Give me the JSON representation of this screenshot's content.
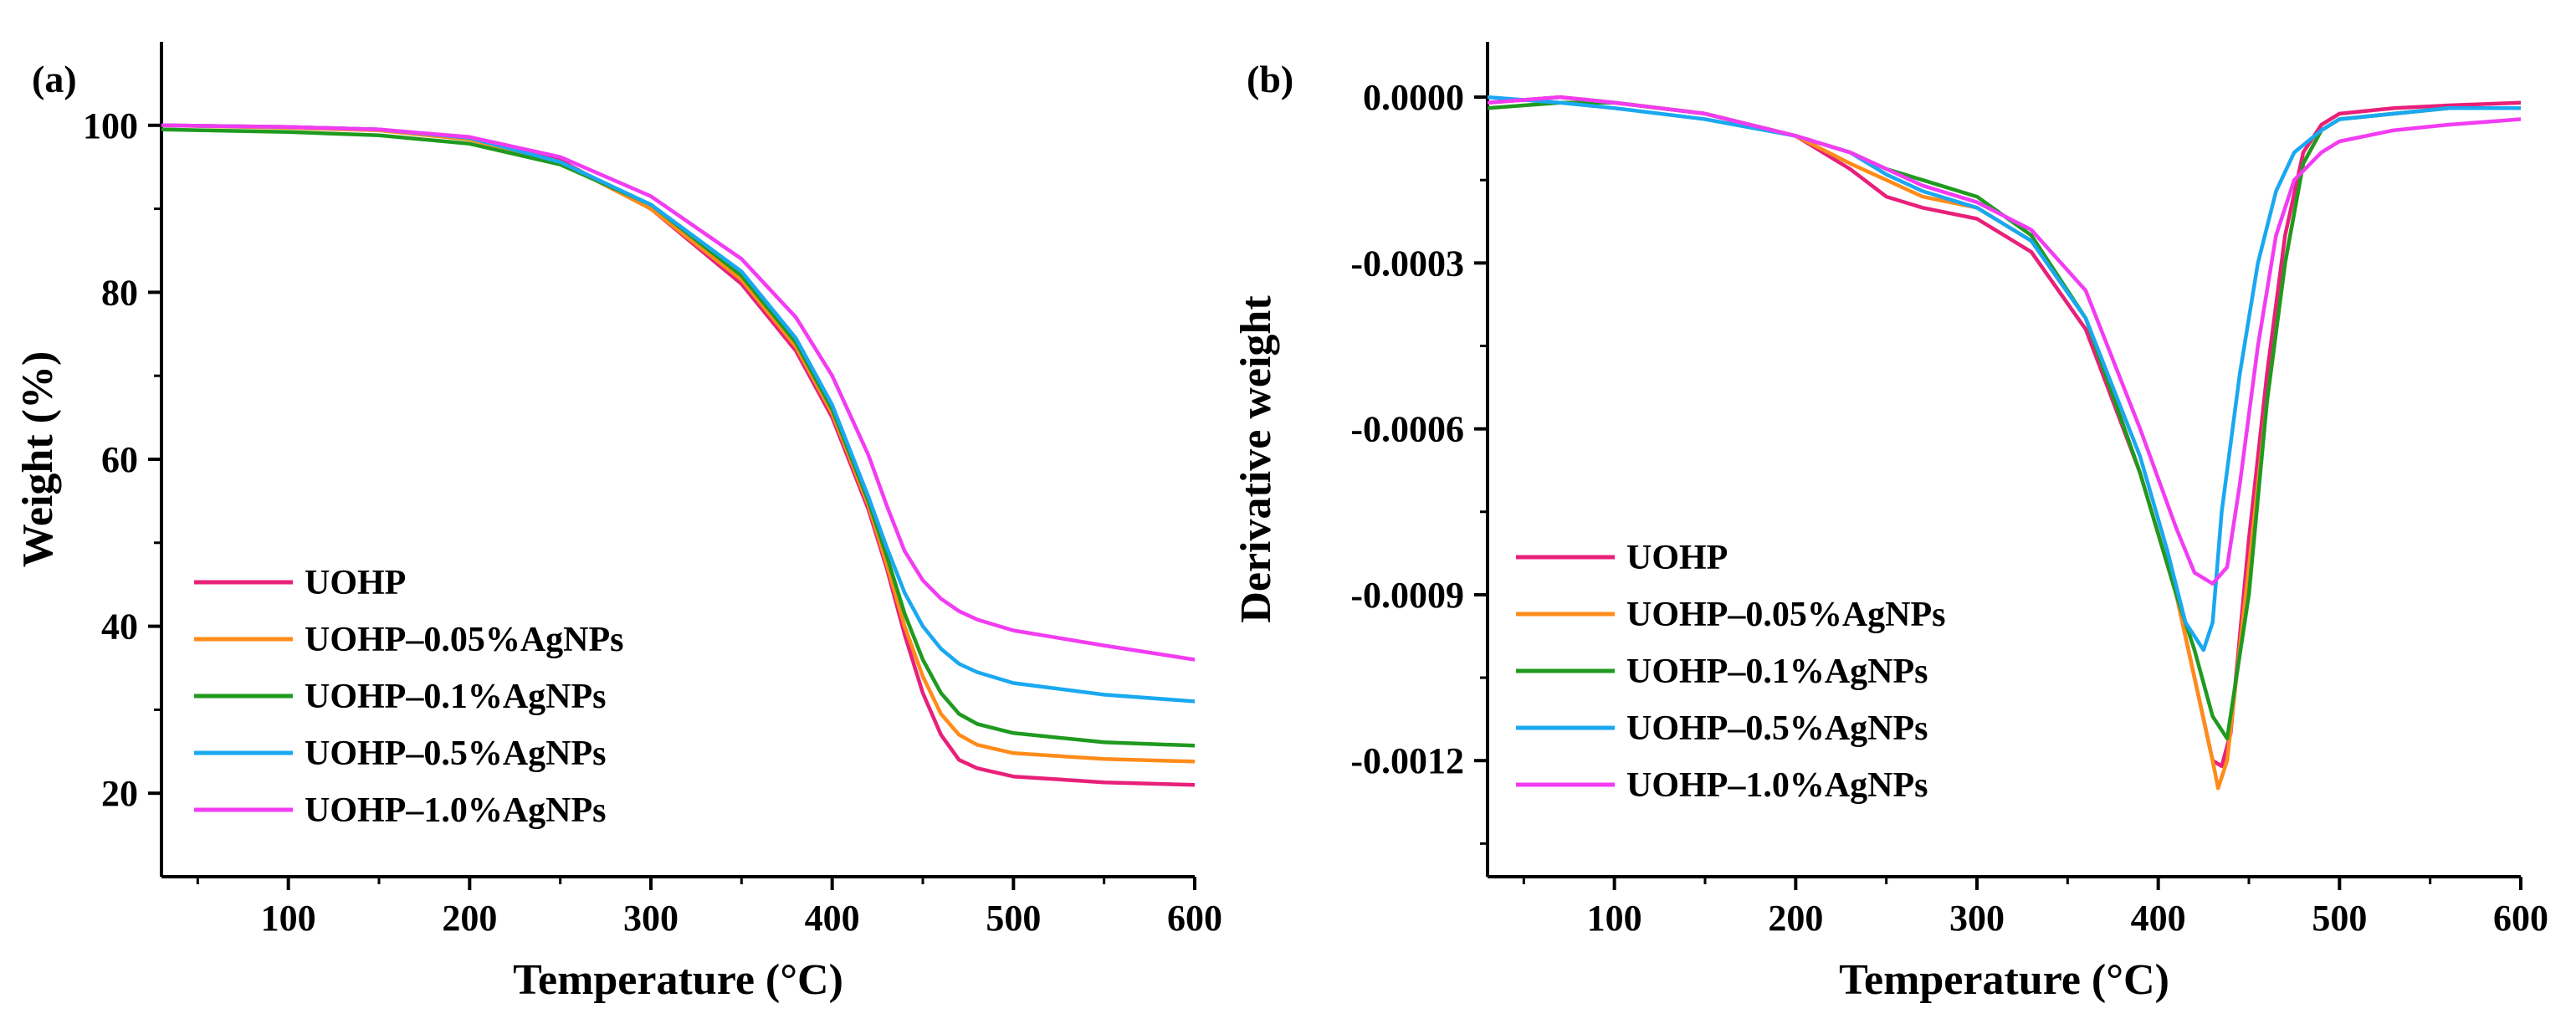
{
  "colors": {
    "UOHP": "#e8207a",
    "UOHP-0.05%AgNPs": "#ff8c1a",
    "UOHP-0.1%AgNPs": "#1f9a1f",
    "UOHP-0.5%AgNPs": "#1aa8f0",
    "UOHP-1.0%AgNPs": "#f23cf2"
  },
  "chart_data": [
    {
      "panel": "(a)",
      "type": "line",
      "xlabel": "Temperature (°C)",
      "ylabel": "Weight (%)",
      "xlim": [
        30,
        600
      ],
      "ylim": [
        10,
        110
      ],
      "xticks": [
        100,
        200,
        300,
        400,
        500,
        600
      ],
      "xtick_labels": [
        "100",
        "200",
        "300",
        "400",
        "500",
        "600"
      ],
      "yticks": [
        20,
        40,
        60,
        80,
        100
      ],
      "ytick_labels": [
        "20",
        "40",
        "60",
        "80",
        "100"
      ],
      "legend_position": "bottom-left",
      "series": [
        {
          "name": "UOHP",
          "label": "UOHP",
          "x": [
            30,
            100,
            150,
            200,
            250,
            300,
            350,
            380,
            400,
            420,
            430,
            440,
            450,
            460,
            470,
            480,
            500,
            550,
            600
          ],
          "y": [
            100,
            99.8,
            99.5,
            98.5,
            95.8,
            90,
            81,
            73,
            65,
            54,
            47,
            39,
            32,
            27,
            24,
            23,
            22,
            21.3,
            21
          ]
        },
        {
          "name": "UOHP-0.05%AgNPs",
          "label": "UOHP–0.05%AgNPs",
          "x": [
            30,
            100,
            150,
            200,
            250,
            300,
            350,
            380,
            400,
            420,
            430,
            440,
            450,
            460,
            470,
            480,
            500,
            550,
            600
          ],
          "y": [
            100,
            99.7,
            99.4,
            98.3,
            95.6,
            90,
            81.5,
            73.5,
            65.5,
            54.5,
            47.5,
            40,
            34,
            29.5,
            27,
            25.8,
            24.8,
            24.1,
            23.8
          ]
        },
        {
          "name": "UOHP-0.1%AgNPs",
          "label": "UOHP–0.1%AgNPs",
          "x": [
            30,
            100,
            150,
            200,
            250,
            300,
            350,
            380,
            400,
            420,
            430,
            440,
            450,
            460,
            470,
            480,
            500,
            550,
            600
          ],
          "y": [
            99.5,
            99.2,
            98.8,
            97.8,
            95.3,
            90.5,
            82,
            74,
            66,
            55,
            48.5,
            41.5,
            36,
            32,
            29.5,
            28.3,
            27.2,
            26.1,
            25.7
          ]
        },
        {
          "name": "UOHP-0.5%AgNPs",
          "label": "UOHP–0.5%AgNPs",
          "x": [
            30,
            100,
            150,
            200,
            250,
            300,
            350,
            380,
            400,
            420,
            430,
            440,
            450,
            460,
            470,
            480,
            500,
            550,
            600
          ],
          "y": [
            100,
            99.8,
            99.5,
            98.5,
            95.6,
            90.5,
            82.5,
            74.5,
            66.5,
            55.5,
            49.5,
            44,
            40,
            37.3,
            35.5,
            34.5,
            33.2,
            31.8,
            31
          ]
        },
        {
          "name": "UOHP-1.0%AgNPs",
          "label": "UOHP–1.0%AgNPs",
          "x": [
            30,
            100,
            150,
            200,
            250,
            300,
            350,
            380,
            400,
            420,
            430,
            440,
            450,
            460,
            470,
            480,
            500,
            550,
            600
          ],
          "y": [
            100,
            99.8,
            99.5,
            98.6,
            96.2,
            91.5,
            84,
            77,
            70,
            60.5,
            54.5,
            49,
            45.5,
            43.3,
            41.8,
            40.8,
            39.5,
            37.7,
            36
          ]
        }
      ]
    },
    {
      "panel": "(b)",
      "type": "line",
      "xlabel": "Temperature (°C)",
      "ylabel": "Derivative weight",
      "xlim": [
        30,
        600
      ],
      "ylim": [
        -0.00141,
        0.0001
      ],
      "xticks": [
        100,
        200,
        300,
        400,
        500,
        600
      ],
      "xtick_labels": [
        "100",
        "200",
        "300",
        "400",
        "500",
        "600"
      ],
      "yticks": [
        0.0,
        -0.0003,
        -0.0006,
        -0.0009,
        -0.0012
      ],
      "ytick_labels": [
        "0.0000",
        "-0.0003",
        "-0.0006",
        "-0.0009",
        "-0.0012"
      ],
      "legend_position": "bottom-left",
      "series": [
        {
          "name": "UOHP",
          "label": "UOHP",
          "x": [
            30,
            70,
            100,
            150,
            200,
            230,
            250,
            270,
            300,
            330,
            360,
            390,
            410,
            420,
            430,
            435,
            440,
            450,
            460,
            470,
            480,
            490,
            500,
            530,
            560,
            600
          ],
          "y": [
            -1e-05,
            0.0,
            -1e-05,
            -3e-05,
            -7e-05,
            -0.00013,
            -0.00018,
            -0.0002,
            -0.00022,
            -0.00028,
            -0.00042,
            -0.00068,
            -0.0009,
            -0.00105,
            -0.0012,
            -0.00121,
            -0.00115,
            -0.0008,
            -0.0005,
            -0.00025,
            -0.0001,
            -5e-05,
            -3e-05,
            -2e-05,
            -1.5e-05,
            -1e-05
          ]
        },
        {
          "name": "UOHP-0.05%AgNPs",
          "label": "UOHP–0.05%AgNPs",
          "x": [
            30,
            70,
            100,
            150,
            200,
            230,
            250,
            270,
            300,
            330,
            360,
            390,
            410,
            420,
            430,
            433,
            438,
            450,
            460,
            470,
            480,
            490,
            500,
            530,
            560,
            600
          ],
          "y": [
            -1e-05,
            0.0,
            -1e-05,
            -3e-05,
            -7e-05,
            -0.00012,
            -0.00015,
            -0.00018,
            -0.0002,
            -0.00026,
            -0.0004,
            -0.00068,
            -0.0009,
            -0.00105,
            -0.0012,
            -0.00125,
            -0.0012,
            -0.00085,
            -0.00055,
            -0.0003,
            -0.00012,
            -6e-05,
            -4e-05,
            -3e-05,
            -2e-05,
            -2e-05
          ]
        },
        {
          "name": "UOHP-0.1%AgNPs",
          "label": "UOHP–0.1%AgNPs",
          "x": [
            30,
            70,
            100,
            150,
            200,
            230,
            250,
            270,
            300,
            330,
            360,
            390,
            410,
            420,
            430,
            438,
            450,
            460,
            470,
            480,
            490,
            500,
            530,
            560,
            600
          ],
          "y": [
            -2e-05,
            -1e-05,
            -1e-05,
            -3e-05,
            -7e-05,
            -0.0001,
            -0.00013,
            -0.00015,
            -0.00018,
            -0.00025,
            -0.0004,
            -0.00068,
            -0.0009,
            -0.001,
            -0.00112,
            -0.00116,
            -0.0009,
            -0.00055,
            -0.0003,
            -0.00012,
            -6e-05,
            -4e-05,
            -3e-05,
            -2e-05,
            -2e-05
          ]
        },
        {
          "name": "UOHP-0.5%AgNPs",
          "label": "UOHP–0.5%AgNPs",
          "x": [
            30,
            70,
            100,
            150,
            200,
            230,
            250,
            270,
            300,
            330,
            360,
            390,
            405,
            415,
            425,
            430,
            435,
            445,
            455,
            465,
            475,
            490,
            500,
            530,
            560,
            600
          ],
          "y": [
            0.0,
            -1e-05,
            -2e-05,
            -4e-05,
            -7e-05,
            -0.0001,
            -0.00014,
            -0.00017,
            -0.0002,
            -0.00026,
            -0.0004,
            -0.00065,
            -0.00082,
            -0.00095,
            -0.001,
            -0.00095,
            -0.00075,
            -0.0005,
            -0.0003,
            -0.00017,
            -0.0001,
            -6e-05,
            -4e-05,
            -3e-05,
            -2e-05,
            -2e-05
          ]
        },
        {
          "name": "UOHP-1.0%AgNPs",
          "label": "UOHP–1.0%AgNPs",
          "x": [
            30,
            70,
            100,
            150,
            200,
            230,
            250,
            270,
            300,
            330,
            360,
            390,
            410,
            420,
            430,
            438,
            445,
            455,
            465,
            475,
            490,
            500,
            530,
            560,
            600
          ],
          "y": [
            -1e-05,
            0.0,
            -1e-05,
            -3e-05,
            -7e-05,
            -0.0001,
            -0.00013,
            -0.00016,
            -0.00019,
            -0.00024,
            -0.00035,
            -0.0006,
            -0.00078,
            -0.00086,
            -0.00088,
            -0.00085,
            -0.0007,
            -0.00045,
            -0.00025,
            -0.00015,
            -0.0001,
            -8e-05,
            -6e-05,
            -5e-05,
            -4e-05
          ]
        }
      ]
    }
  ]
}
